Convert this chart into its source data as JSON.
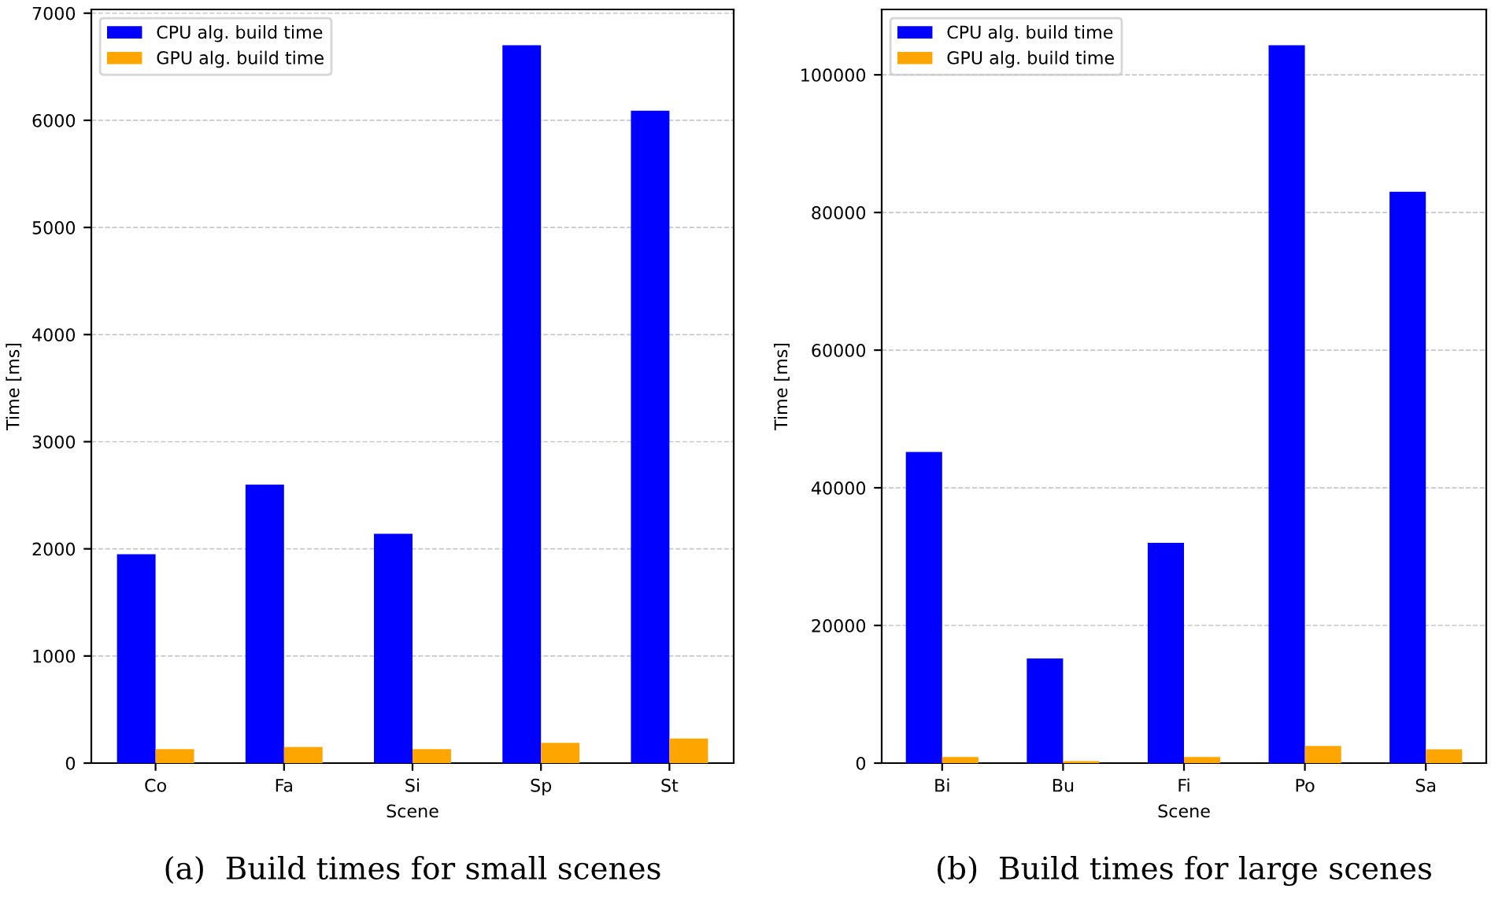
{
  "chart_data": [
    {
      "type": "bar",
      "categories": [
        "Co",
        "Fa",
        "Si",
        "Sp",
        "St"
      ],
      "xlabel": "Scene",
      "ylabel": "Time [ms]",
      "ylim": [
        0,
        7035
      ],
      "yticks": [
        0,
        1000,
        2000,
        3000,
        4000,
        5000,
        6000,
        7000
      ],
      "grid": "y",
      "legend": "top left",
      "annotations": [
        "(a)  Build times for small scenes"
      ],
      "series": [
        {
          "name": "CPU alg. build time",
          "color": "#0000ff",
          "values": [
            1950,
            2600,
            2140,
            6700,
            6090
          ]
        },
        {
          "name": "GPU alg. build time",
          "color": "#ffa500",
          "values": [
            130,
            150,
            130,
            190,
            230
          ]
        }
      ]
    },
    {
      "type": "bar",
      "categories": [
        "Bi",
        "Bu",
        "Fi",
        "Po",
        "Sa"
      ],
      "xlabel": "Scene",
      "ylabel": "Time [ms]",
      "ylim": [
        0,
        109500
      ],
      "yticks": [
        0,
        20000,
        40000,
        60000,
        80000,
        100000
      ],
      "grid": "y",
      "legend": "top left",
      "annotations": [
        "(b)  Build times for large scenes"
      ],
      "series": [
        {
          "name": "CPU alg. build time",
          "color": "#0000ff",
          "values": [
            45200,
            15200,
            32000,
            104300,
            83000
          ]
        },
        {
          "name": "GPU alg. build time",
          "color": "#ffa500",
          "values": [
            900,
            300,
            900,
            2500,
            2000
          ]
        }
      ]
    }
  ]
}
